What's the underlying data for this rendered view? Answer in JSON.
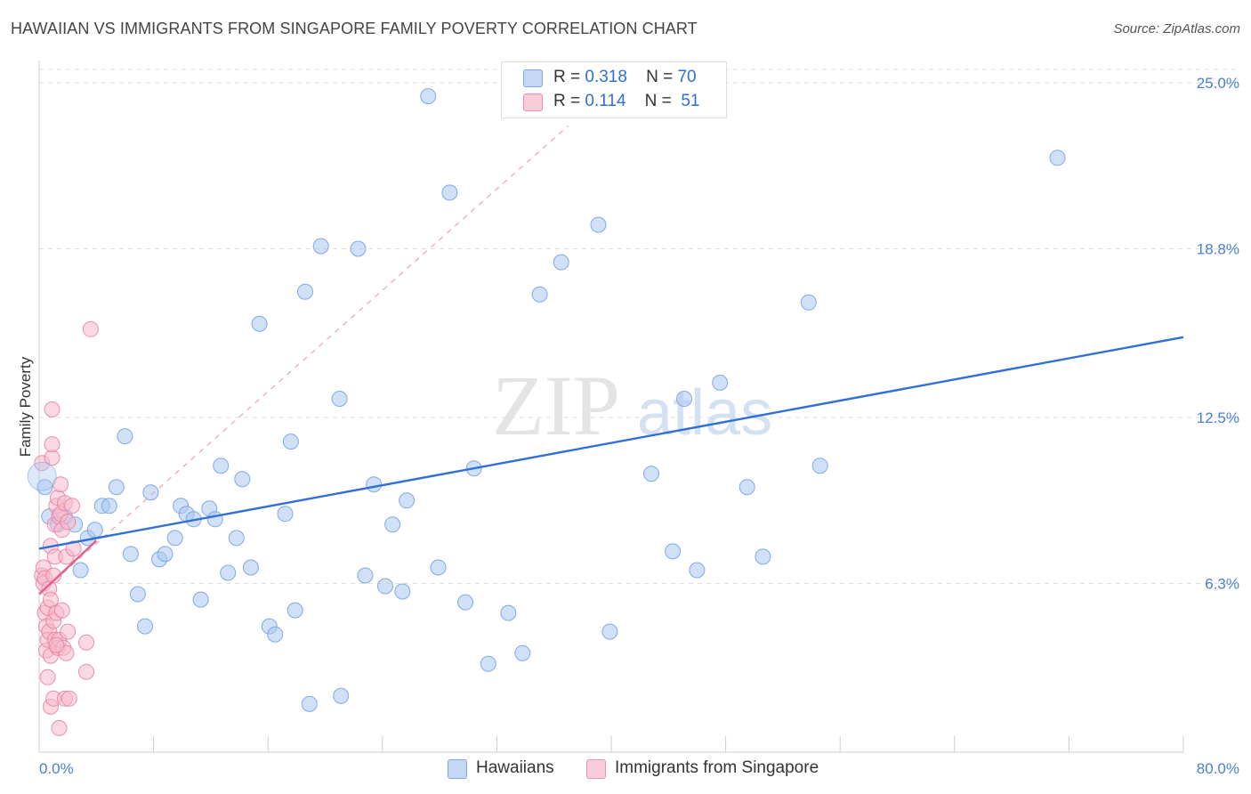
{
  "header": {
    "title": "HAWAIIAN VS IMMIGRANTS FROM SINGAPORE FAMILY POVERTY CORRELATION CHART",
    "source": "Source: ZipAtlas.com"
  },
  "legend_top": {
    "rows": [
      {
        "r_label": "R =",
        "r_value": "0.318",
        "n_label": "N =",
        "n_value": "70"
      },
      {
        "r_label": "R =",
        "r_value": "0.114",
        "n_label": "N =",
        "n_value": "51"
      }
    ]
  },
  "legend_bottom": {
    "items": [
      {
        "label": "Hawaiians"
      },
      {
        "label": "Immigrants from Singapore"
      }
    ]
  },
  "colors": {
    "blue_fill": "#a9c8f0",
    "blue_stroke": "#6f9de0",
    "blue_line": "#2f6fd6",
    "pink_fill": "#f6b9cc",
    "pink_stroke": "#e87fa0",
    "pink_line": "#e0608c",
    "grid": "#dedede",
    "tick_text": "#4a7fd1"
  },
  "chart_data": {
    "type": "scatter",
    "title": "HAWAIIAN VS IMMIGRANTS FROM SINGAPORE FAMILY POVERTY CORRELATION CHART",
    "xlabel": "",
    "ylabel": "Family Poverty",
    "xlim": [
      0,
      80
    ],
    "ylim": [
      0,
      25.5
    ],
    "x_tick_labels": [
      "0.0%",
      "80.0%"
    ],
    "y_ticks": [
      6.3,
      12.5,
      18.8,
      25.0
    ],
    "y_tick_labels": [
      "6.3%",
      "12.5%",
      "18.8%",
      "25.0%"
    ],
    "grid": true,
    "watermark": {
      "zip": "ZIP",
      "atlas": "atlas"
    },
    "series": [
      {
        "name": "Hawaiians",
        "r": 0.318,
        "n": 70,
        "trend": {
          "x": [
            0,
            80
          ],
          "y": [
            7.6,
            15.5
          ],
          "style": "solid"
        },
        "points": [
          [
            0.4,
            9.9
          ],
          [
            0.7,
            8.8
          ],
          [
            1.3,
            8.5
          ],
          [
            1.8,
            8.8
          ],
          [
            2.5,
            8.5
          ],
          [
            2.9,
            6.8
          ],
          [
            3.4,
            8.0
          ],
          [
            3.9,
            8.3
          ],
          [
            4.4,
            9.2
          ],
          [
            4.9,
            9.2
          ],
          [
            5.4,
            9.9
          ],
          [
            6.0,
            11.8
          ],
          [
            6.4,
            7.4
          ],
          [
            6.9,
            5.9
          ],
          [
            7.4,
            4.7
          ],
          [
            7.8,
            9.7
          ],
          [
            8.4,
            7.2
          ],
          [
            8.8,
            7.4
          ],
          [
            9.5,
            8.0
          ],
          [
            9.9,
            9.2
          ],
          [
            10.3,
            8.9
          ],
          [
            10.8,
            8.7
          ],
          [
            11.3,
            5.7
          ],
          [
            11.9,
            9.1
          ],
          [
            12.3,
            8.7
          ],
          [
            12.7,
            10.7
          ],
          [
            13.2,
            6.7
          ],
          [
            13.8,
            8.0
          ],
          [
            14.2,
            10.2
          ],
          [
            14.8,
            6.9
          ],
          [
            15.4,
            16.0
          ],
          [
            16.1,
            4.7
          ],
          [
            16.5,
            4.4
          ],
          [
            17.2,
            8.9
          ],
          [
            17.6,
            11.6
          ],
          [
            17.9,
            5.3
          ],
          [
            18.6,
            17.2
          ],
          [
            18.9,
            1.8
          ],
          [
            19.7,
            18.9
          ],
          [
            21.0,
            13.2
          ],
          [
            21.1,
            2.1
          ],
          [
            22.3,
            18.8
          ],
          [
            22.8,
            6.6
          ],
          [
            23.4,
            10.0
          ],
          [
            24.2,
            6.2
          ],
          [
            24.7,
            8.5
          ],
          [
            25.4,
            6.0
          ],
          [
            25.7,
            9.4
          ],
          [
            27.2,
            24.5
          ],
          [
            27.9,
            6.9
          ],
          [
            28.7,
            20.9
          ],
          [
            29.8,
            5.6
          ],
          [
            30.4,
            10.6
          ],
          [
            31.4,
            3.3
          ],
          [
            32.8,
            5.2
          ],
          [
            33.8,
            3.7
          ],
          [
            35.0,
            17.1
          ],
          [
            36.5,
            18.3
          ],
          [
            39.1,
            19.7
          ],
          [
            39.9,
            4.5
          ],
          [
            42.8,
            10.4
          ],
          [
            44.3,
            7.5
          ],
          [
            45.1,
            13.2
          ],
          [
            46.0,
            6.8
          ],
          [
            47.6,
            13.8
          ],
          [
            49.5,
            9.9
          ],
          [
            50.6,
            7.3
          ],
          [
            53.8,
            16.8
          ],
          [
            54.6,
            10.7
          ],
          [
            71.2,
            22.2
          ]
        ]
      },
      {
        "name": "Immigrants from Singapore",
        "r": 0.114,
        "n": 51,
        "trend": {
          "x": [
            0,
            4
          ],
          "y": [
            5.9,
            7.9
          ],
          "style": "solid"
        },
        "trend_extended": {
          "x": [
            0,
            37
          ],
          "y": [
            5.9,
            23.4
          ],
          "style": "dashed"
        },
        "points": [
          [
            0.2,
            10.8
          ],
          [
            0.2,
            6.6
          ],
          [
            0.3,
            6.9
          ],
          [
            0.3,
            6.3
          ],
          [
            0.4,
            6.5
          ],
          [
            0.4,
            5.2
          ],
          [
            0.5,
            4.7
          ],
          [
            0.5,
            3.8
          ],
          [
            0.6,
            5.4
          ],
          [
            0.6,
            4.2
          ],
          [
            0.6,
            2.8
          ],
          [
            0.7,
            6.1
          ],
          [
            0.7,
            4.5
          ],
          [
            0.8,
            7.7
          ],
          [
            0.8,
            5.7
          ],
          [
            0.8,
            3.6
          ],
          [
            0.8,
            1.7
          ],
          [
            0.9,
            11.0
          ],
          [
            0.9,
            11.5
          ],
          [
            0.9,
            12.8
          ],
          [
            1.0,
            6.6
          ],
          [
            1.0,
            4.9
          ],
          [
            1.0,
            2.0
          ],
          [
            1.1,
            8.5
          ],
          [
            1.1,
            7.3
          ],
          [
            1.1,
            4.2
          ],
          [
            1.2,
            9.2
          ],
          [
            1.2,
            5.2
          ],
          [
            1.3,
            9.5
          ],
          [
            1.3,
            3.9
          ],
          [
            1.4,
            8.8
          ],
          [
            1.4,
            4.2
          ],
          [
            1.4,
            0.9
          ],
          [
            1.5,
            10.0
          ],
          [
            1.5,
            8.9
          ],
          [
            1.6,
            8.3
          ],
          [
            1.6,
            5.3
          ],
          [
            1.7,
            3.9
          ],
          [
            1.8,
            2.0
          ],
          [
            1.8,
            9.3
          ],
          [
            1.9,
            7.3
          ],
          [
            1.9,
            3.7
          ],
          [
            2.0,
            4.5
          ],
          [
            2.0,
            8.6
          ],
          [
            2.1,
            2.0
          ],
          [
            2.3,
            9.2
          ],
          [
            2.4,
            7.6
          ],
          [
            3.3,
            4.1
          ],
          [
            3.3,
            3.0
          ],
          [
            3.6,
            15.8
          ],
          [
            1.2,
            4.0
          ]
        ]
      }
    ]
  }
}
